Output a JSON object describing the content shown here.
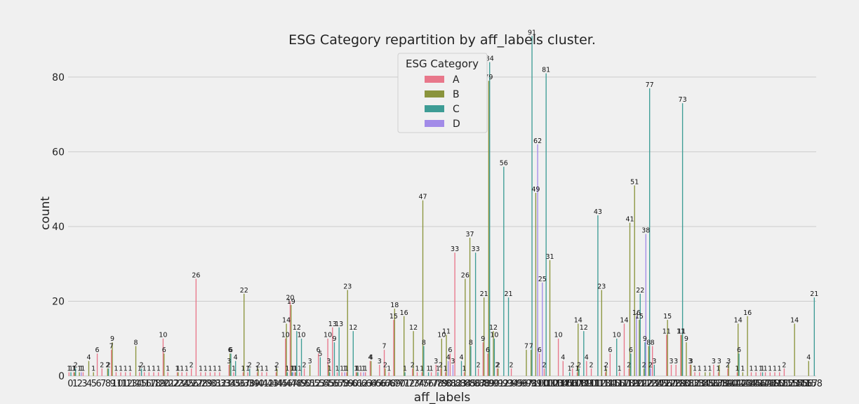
{
  "chart_data": {
    "type": "bar",
    "title": "ESG Category repartition by aff_labels cluster.",
    "xlabel": "aff_labels",
    "ylabel": "count",
    "ylim": [
      0,
      95
    ],
    "yticks": [
      0,
      20,
      40,
      60,
      80
    ],
    "grid": true,
    "legend": {
      "title": "ESG Category",
      "placement": "top-center"
    },
    "categories": [
      "0",
      "1",
      "2",
      "3",
      "4",
      "5",
      "6",
      "7",
      "8",
      "9",
      "10",
      "11",
      "12",
      "13",
      "14",
      "15",
      "16",
      "17",
      "18",
      "19",
      "20",
      "21",
      "22",
      "23",
      "24",
      "25",
      "26",
      "27",
      "28",
      "29",
      "30",
      "31",
      "32",
      "33",
      "34",
      "35",
      "36",
      "37",
      "38",
      "39",
      "40",
      "41",
      "42",
      "43",
      "44",
      "45",
      "46",
      "47",
      "48",
      "49",
      "50",
      "51",
      "52",
      "53",
      "54",
      "55",
      "56",
      "57",
      "58",
      "59",
      "60",
      "61",
      "62",
      "63",
      "64",
      "65",
      "66",
      "67",
      "68",
      "69",
      "70",
      "71",
      "72",
      "73",
      "74",
      "75",
      "76",
      "77",
      "78",
      "79",
      "80",
      "81",
      "82",
      "83",
      "84",
      "85",
      "86",
      "87",
      "88",
      "89",
      "90",
      "91",
      "92",
      "93",
      "94",
      "95",
      "96",
      "97",
      "98",
      "99",
      "100",
      "101",
      "102",
      "103",
      "104",
      "105",
      "106",
      "107",
      "108",
      "109",
      "110",
      "111",
      "112",
      "113",
      "114",
      "115",
      "116",
      "117",
      "118",
      "119",
      "120",
      "121",
      "122",
      "123",
      "124",
      "125",
      "126",
      "127",
      "128",
      "129",
      "130",
      "131",
      "132",
      "133",
      "134",
      "135",
      "136",
      "137",
      "138",
      "139",
      "140",
      "141",
      "142",
      "143",
      "144",
      "145",
      "146",
      "147",
      "148",
      "149",
      "150",
      "151",
      "152",
      "153",
      "154",
      "155",
      "156",
      "157",
      "158"
    ],
    "series": [
      {
        "name": "A",
        "color": "#e8778a",
        "values": [
          1,
          1,
          null,
          1,
          null,
          null,
          6,
          2,
          null,
          7,
          1,
          1,
          1,
          1,
          null,
          1,
          1,
          1,
          1,
          1,
          10,
          1,
          null,
          1,
          1,
          1,
          2,
          26,
          1,
          1,
          1,
          1,
          1,
          null,
          3,
          1,
          null,
          1,
          1,
          null,
          1,
          1,
          1,
          null,
          1,
          null,
          10,
          20,
          1,
          1,
          2,
          null,
          null,
          6,
          null,
          10,
          13,
          1,
          1,
          1,
          null,
          1,
          1,
          1,
          4,
          null,
          3,
          7,
          1,
          15,
          null,
          null,
          null,
          2,
          1,
          1,
          null,
          1,
          3,
          2,
          1,
          6,
          33,
          null,
          1,
          null,
          null,
          2,
          9,
          6,
          null,
          2,
          null,
          null,
          2,
          null,
          null,
          null,
          null,
          null,
          6,
          2,
          null,
          null,
          10,
          4,
          null,
          2,
          1,
          null,
          4,
          2,
          null,
          null,
          1,
          6,
          null,
          1,
          14,
          2,
          null,
          null,
          null,
          null,
          8,
          null,
          null,
          11,
          3,
          3,
          11,
          null,
          3,
          1,
          1,
          null,
          null,
          3,
          1,
          null,
          2,
          null,
          1,
          null,
          null,
          1,
          1,
          1,
          1,
          1,
          1,
          1,
          2,
          null,
          null,
          null,
          null,
          null,
          null
        ]
      },
      {
        "name": "B",
        "color": "#8a943c",
        "values": [
          null,
          1,
          1,
          null,
          4,
          1,
          null,
          null,
          2,
          9,
          null,
          null,
          null,
          null,
          8,
          null,
          null,
          null,
          null,
          null,
          6,
          null,
          null,
          1,
          null,
          null,
          null,
          null,
          null,
          null,
          null,
          null,
          null,
          null,
          6,
          null,
          null,
          22,
          null,
          null,
          2,
          null,
          null,
          null,
          2,
          null,
          14,
          19,
          1,
          null,
          null,
          3,
          null,
          null,
          null,
          3,
          null,
          null,
          null,
          23,
          null,
          1,
          null,
          null,
          4,
          null,
          null,
          2,
          null,
          18,
          null,
          16,
          null,
          12,
          null,
          47,
          null,
          null,
          null,
          10,
          11,
          null,
          null,
          null,
          26,
          37,
          null,
          null,
          21,
          79,
          12,
          2,
          null,
          null,
          null,
          null,
          null,
          7,
          7,
          49,
          null,
          null,
          31,
          null,
          null,
          null,
          null,
          null,
          14,
          null,
          null,
          null,
          null,
          23,
          2,
          null,
          null,
          null,
          null,
          41,
          51,
          15,
          2,
          8,
          null,
          null,
          null,
          15,
          null,
          null,
          11,
          9,
          3,
          null,
          null,
          1,
          1,
          null,
          3,
          null,
          3,
          null,
          14,
          1,
          16,
          null,
          null,
          null,
          null,
          null,
          null,
          null,
          null,
          null,
          14,
          null,
          null,
          4,
          null
        ]
      },
      {
        "name": "C",
        "color": "#3d9c95",
        "values": [
          1,
          2,
          null,
          null,
          null,
          null,
          null,
          null,
          2,
          null,
          null,
          null,
          null,
          null,
          null,
          2,
          null,
          null,
          null,
          null,
          null,
          null,
          null,
          null,
          null,
          null,
          null,
          null,
          null,
          null,
          null,
          null,
          null,
          null,
          6,
          4,
          null,
          null,
          2,
          null,
          null,
          null,
          null,
          null,
          null,
          null,
          1,
          1,
          12,
          10,
          null,
          null,
          null,
          5,
          null,
          1,
          9,
          13,
          null,
          null,
          12,
          1,
          null,
          null,
          null,
          null,
          null,
          null,
          null,
          null,
          null,
          1,
          null,
          null,
          null,
          8,
          1,
          null,
          1,
          null,
          null,
          null,
          null,
          4,
          null,
          8,
          33,
          null,
          null,
          84,
          10,
          null,
          56,
          21,
          null,
          null,
          null,
          null,
          91,
          null,
          null,
          81,
          null,
          null,
          null,
          null,
          1,
          null,
          2,
          12,
          null,
          null,
          43,
          null,
          null,
          null,
          10,
          null,
          null,
          6,
          null,
          22,
          9,
          77,
          3,
          null,
          null,
          null,
          null,
          null,
          73,
          null,
          null,
          null,
          null,
          null,
          null,
          null,
          null,
          null,
          null,
          null,
          6,
          null,
          null,
          null,
          null,
          1,
          null,
          null,
          null,
          null,
          null,
          null,
          null,
          null,
          null,
          null,
          21
        ]
      },
      {
        "name": "D",
        "color": "#a28be8",
        "values": [
          null,
          null,
          1,
          null,
          null,
          null,
          null,
          null,
          null,
          null,
          null,
          null,
          null,
          null,
          null,
          null,
          null,
          null,
          null,
          null,
          null,
          null,
          null,
          null,
          null,
          null,
          null,
          null,
          null,
          null,
          null,
          null,
          null,
          null,
          null,
          null,
          null,
          null,
          null,
          null,
          null,
          null,
          null,
          null,
          null,
          null,
          null,
          1,
          null,
          null,
          null,
          null,
          null,
          null,
          null,
          null,
          null,
          null,
          1,
          null,
          null,
          null,
          1,
          null,
          null,
          null,
          null,
          null,
          null,
          null,
          null,
          null,
          null,
          null,
          null,
          null,
          null,
          null,
          null,
          null,
          4,
          3,
          null,
          null,
          null,
          null,
          null,
          null,
          null,
          null,
          null,
          null,
          null,
          null,
          null,
          null,
          null,
          null,
          null,
          62,
          25,
          null,
          null,
          null,
          null,
          null,
          null,
          null,
          null,
          null,
          null,
          null,
          null,
          null,
          null,
          null,
          null,
          null,
          null,
          null,
          16,
          null,
          38,
          2,
          null,
          null,
          null,
          null,
          null,
          null,
          null,
          null,
          null,
          null,
          null,
          null,
          null,
          null,
          null,
          null,
          null,
          null,
          null,
          null,
          null,
          null,
          null,
          null,
          null,
          null,
          null,
          null,
          null,
          null,
          null,
          null,
          null,
          null,
          null
        ]
      }
    ]
  }
}
